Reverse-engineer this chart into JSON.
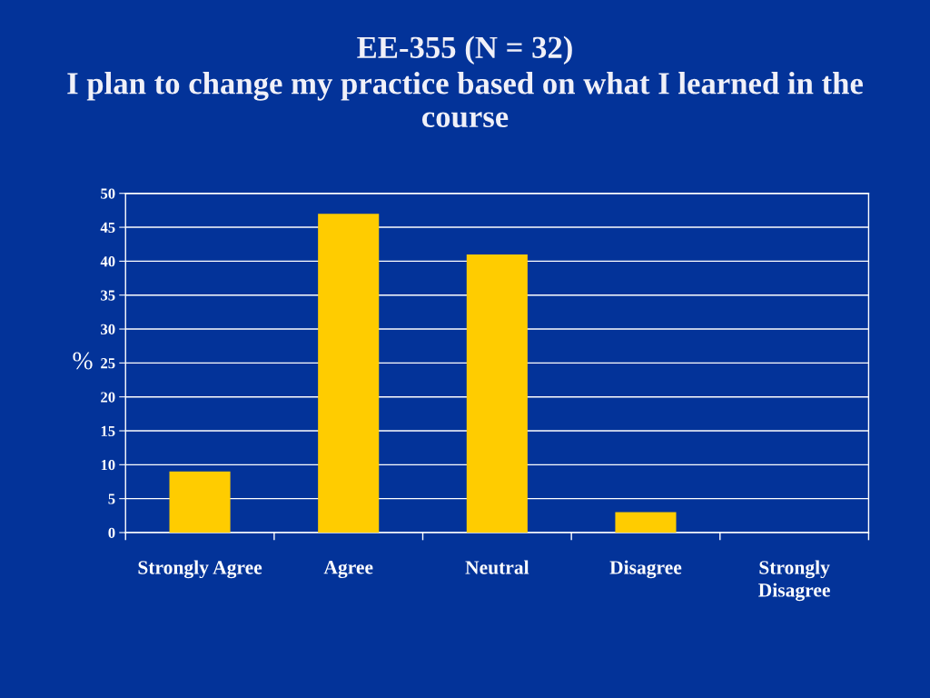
{
  "chart_data": {
    "type": "bar",
    "title": "EE-355 (N = 32)",
    "subtitle": "I plan to change my practice based on what I learned in the course",
    "ylabel": "%",
    "categories": [
      "Strongly Agree",
      "Agree",
      "Neutral",
      "Disagree",
      "Strongly Disagree"
    ],
    "values": [
      9,
      47,
      41,
      3,
      0
    ],
    "color": "#ffcc00",
    "ylim": [
      0,
      50
    ],
    "yticks": [
      0,
      5,
      10,
      15,
      20,
      25,
      30,
      35,
      40,
      45,
      50
    ],
    "grid": "y"
  }
}
